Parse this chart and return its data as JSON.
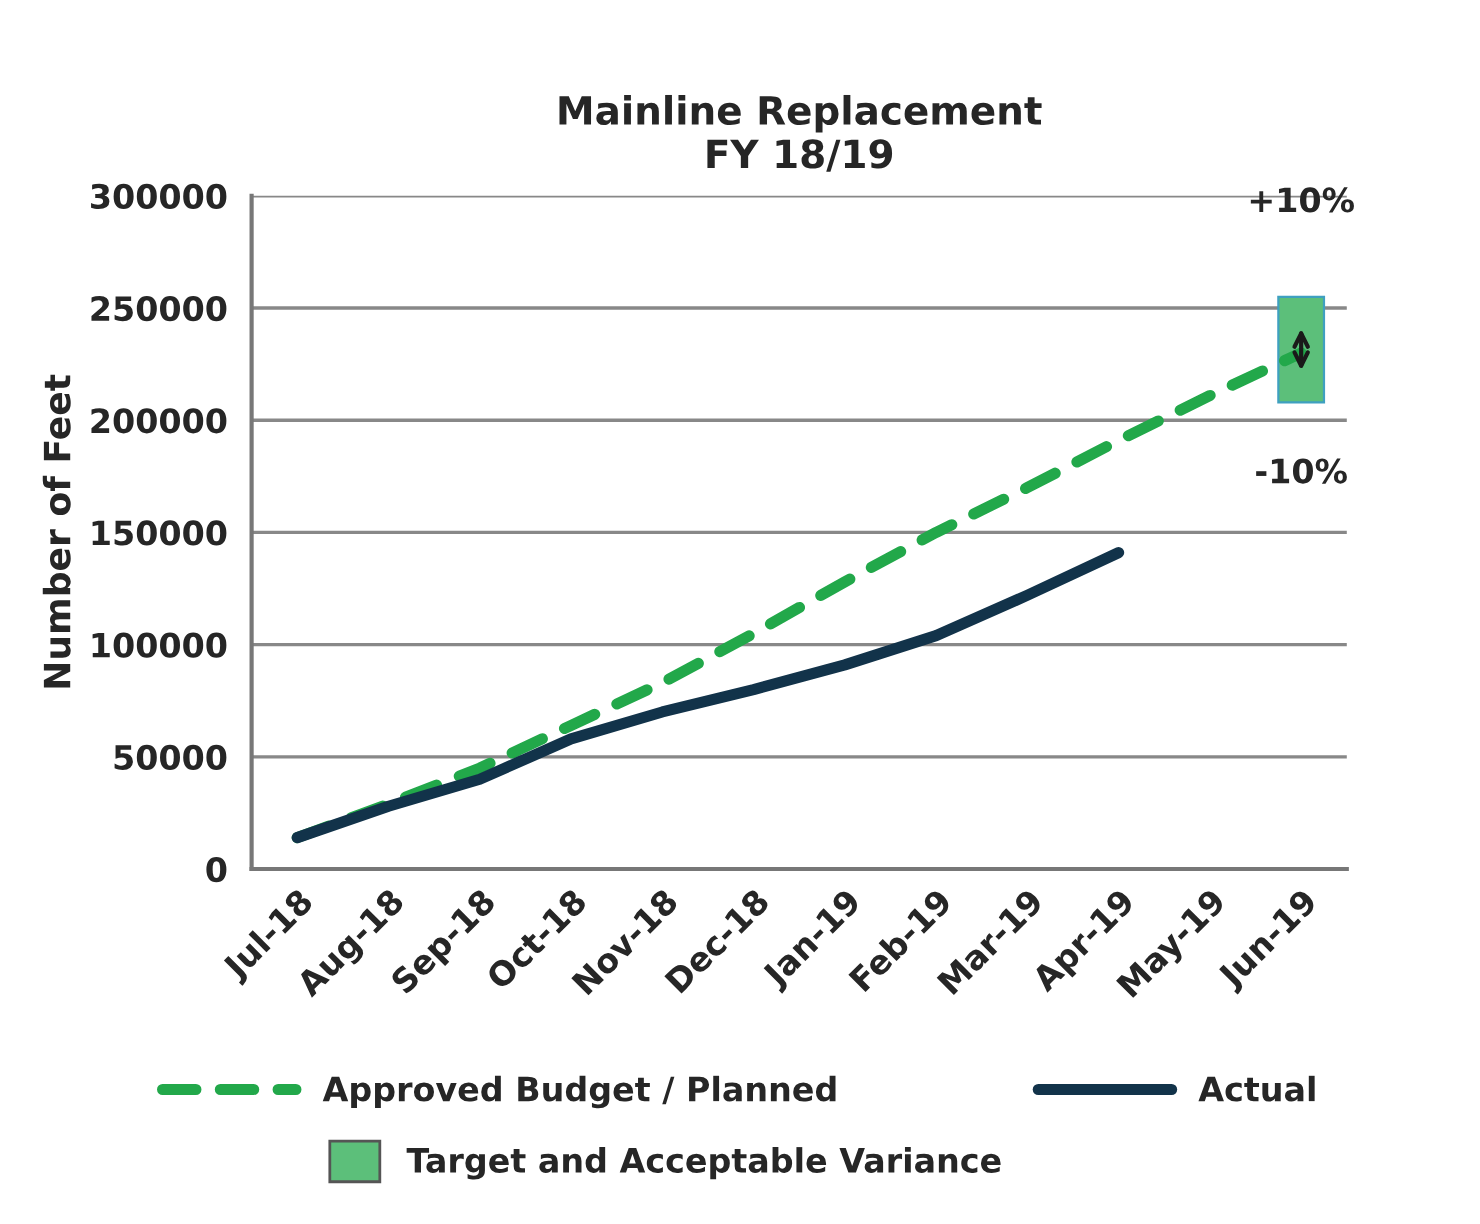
{
  "chart_data": {
    "type": "line",
    "title": "Mainline Replacement\nFY 18/19",
    "ylabel": "Number of Feet",
    "categories": [
      "Jul-18",
      "Aug-18",
      "Sep-18",
      "Oct-18",
      "Nov-18",
      "Dec-18",
      "Jan-19",
      "Feb-19",
      "Mar-19",
      "Apr-19",
      "May-19",
      "Jun-19"
    ],
    "series": [
      {
        "name": "Approved Budget / Planned",
        "color": "#22a84a",
        "line_style": "dashed",
        "values": [
          14000,
          29000,
          45000,
          64000,
          83000,
          105000,
          128000,
          150000,
          170000,
          191000,
          211000,
          230000
        ]
      },
      {
        "name": "Actual",
        "color": "#12334a",
        "line_style": "solid",
        "values": [
          14000,
          28000,
          40000,
          58000,
          70000,
          80000,
          91000,
          104000,
          122000,
          141000,
          null,
          null
        ]
      },
      {
        "name": "Target and Acceptable Variance",
        "type": "bar",
        "color": "#5cbf7a",
        "base": [
          null,
          null,
          null,
          null,
          null,
          null,
          null,
          null,
          null,
          null,
          null,
          208000
        ],
        "values": [
          null,
          null,
          null,
          null,
          null,
          null,
          null,
          null,
          null,
          null,
          null,
          47000
        ]
      }
    ],
    "annotations": [
      "+10%",
      "-10%"
    ],
    "ylim": [
      0,
      300000
    ],
    "yticks": [
      0,
      50000,
      100000,
      150000,
      200000,
      250000,
      300000
    ],
    "grid": "y",
    "legend": "bottom"
  }
}
